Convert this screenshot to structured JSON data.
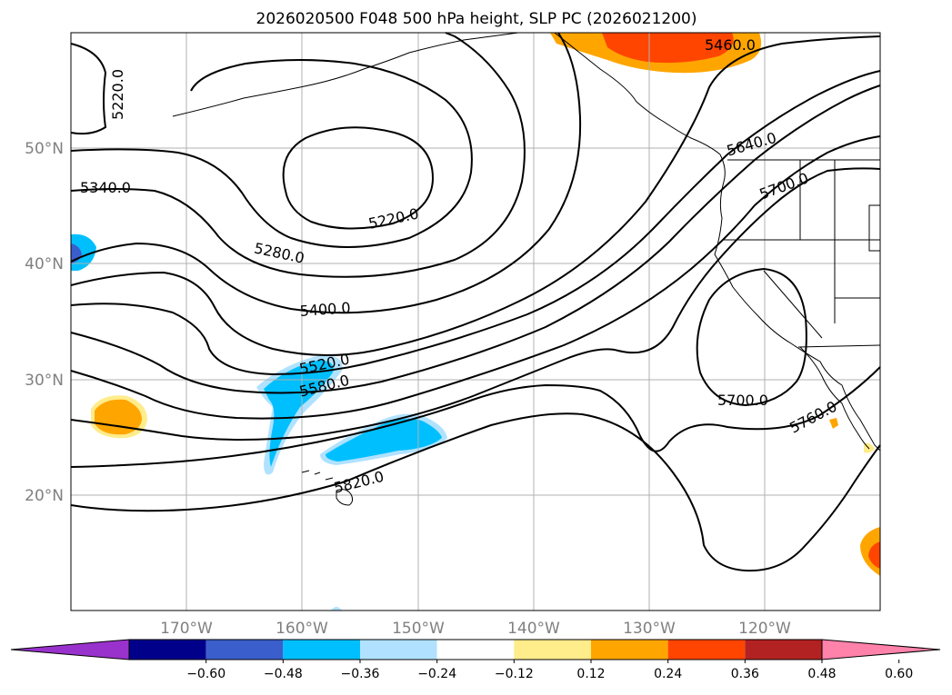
{
  "title": "2026020500 F048 500 hPa height, SLP PC (2026021200)",
  "map": {
    "lat_labels": [
      "50°N",
      "40°N",
      "30°N",
      "20°N"
    ],
    "lon_labels": [
      "170°W",
      "160°W",
      "150°W",
      "140°W",
      "130°W",
      "120°W"
    ],
    "grid": true
  },
  "contour_labels": [
    "5220.0",
    "5220.0",
    "5340.0",
    "5280.0",
    "5400.0",
    "5520.0",
    "5580.0",
    "5820.0",
    "5460.0",
    "5640.0",
    "5700.0",
    "5700.0",
    "5760.0"
  ],
  "colorbar": {
    "ticks": [
      "−0.60",
      "−0.48",
      "−0.36",
      "−0.24",
      "−0.12",
      "0.12",
      "0.24",
      "0.36",
      "0.48",
      "0.60"
    ],
    "colors": [
      "#9932cc",
      "#00008b",
      "#3a5fcd",
      "#00bfff",
      "#b0e2ff",
      "#ffffff",
      "#ffec8b",
      "#ffa500",
      "#ff4500",
      "#b22222",
      "#ff82ab"
    ]
  },
  "colors": {
    "contour": "#000000",
    "grid": "#b0b0b0",
    "axis_labels": "#808080"
  }
}
